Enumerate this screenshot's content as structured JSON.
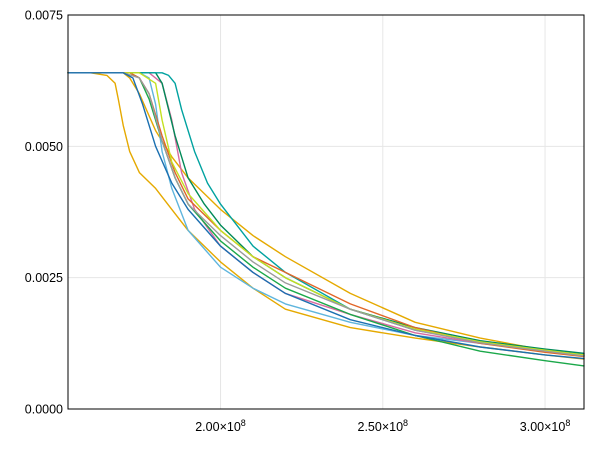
{
  "chart_data": {
    "type": "line",
    "title": "",
    "xlabel": "",
    "ylabel": "",
    "xlim": [
      153000000,
      312000000
    ],
    "ylim": [
      0,
      0.0075
    ],
    "grid": true,
    "legend": "none",
    "x_ticks": [
      {
        "value": 200000000,
        "mantissa": "2.00×10",
        "exp": "8"
      },
      {
        "value": 250000000,
        "mantissa": "2.50×10",
        "exp": "8"
      },
      {
        "value": 300000000,
        "mantissa": "3.00×10",
        "exp": "8"
      }
    ],
    "y_ticks": [
      {
        "value": 0,
        "label": "0.0000"
      },
      {
        "value": 0.0025,
        "label": "0.0025"
      },
      {
        "value": 0.005,
        "label": "0.0050"
      },
      {
        "value": 0.0075,
        "label": "0.0075"
      }
    ],
    "series": [
      {
        "color": "#e5a900",
        "x": [
          153000000,
          160000000,
          165000000,
          167500000,
          168500000,
          170000000,
          172000000,
          175000000,
          180000000,
          185000000,
          190000000,
          200000000,
          210000000,
          220000000,
          240000000,
          260000000,
          280000000,
          300000000,
          312000000
        ],
        "y": [
          0.0064,
          0.0064,
          0.00635,
          0.0062,
          0.0059,
          0.0054,
          0.0049,
          0.0045,
          0.0042,
          0.0038,
          0.0034,
          0.0028,
          0.0023,
          0.0019,
          0.00155,
          0.00135,
          0.00118,
          0.00103,
          0.00095
        ]
      },
      {
        "color": "#e5a900",
        "x": [
          153000000,
          165000000,
          170000000,
          172000000,
          175000000,
          180000000,
          185000000,
          190000000,
          200000000,
          210000000,
          220000000,
          240000000,
          260000000,
          280000000,
          300000000,
          312000000
        ],
        "y": [
          0.0064,
          0.0064,
          0.0064,
          0.0063,
          0.006,
          0.0053,
          0.0048,
          0.0044,
          0.0038,
          0.0033,
          0.0029,
          0.0022,
          0.00165,
          0.00135,
          0.00112,
          0.00102
        ]
      },
      {
        "color": "#5fb5dd",
        "x": [
          153000000,
          170000000,
          175000000,
          178000000,
          180000000,
          182000000,
          185000000,
          190000000,
          200000000,
          210000000,
          220000000,
          240000000,
          260000000,
          280000000,
          300000000,
          312000000
        ],
        "y": [
          0.0064,
          0.0064,
          0.0064,
          0.0063,
          0.0058,
          0.0049,
          0.0042,
          0.0034,
          0.0027,
          0.0023,
          0.002,
          0.00165,
          0.0014,
          0.00125,
          0.00112,
          0.00105
        ]
      },
      {
        "color": "#d76ba0",
        "x": [
          153000000,
          175000000,
          178000000,
          182000000,
          185000000,
          188000000,
          192000000,
          200000000,
          210000000,
          220000000,
          240000000,
          260000000,
          280000000,
          300000000,
          312000000
        ],
        "y": [
          0.0064,
          0.0064,
          0.0064,
          0.0062,
          0.0055,
          0.0045,
          0.0038,
          0.0031,
          0.0026,
          0.0022,
          0.0018,
          0.00145,
          0.00125,
          0.0011,
          0.00103
        ]
      },
      {
        "color": "#008a58",
        "x": [
          153000000,
          175000000,
          180000000,
          182000000,
          186000000,
          190000000,
          195000000,
          200000000,
          210000000,
          220000000,
          240000000,
          260000000,
          280000000,
          300000000,
          312000000
        ],
        "y": [
          0.0064,
          0.0064,
          0.0064,
          0.0062,
          0.0052,
          0.0044,
          0.0039,
          0.0035,
          0.0029,
          0.0025,
          0.0019,
          0.00155,
          0.0013,
          0.00114,
          0.00106
        ]
      },
      {
        "color": "#00a2a0",
        "x": [
          153000000,
          178000000,
          182000000,
          184000000,
          186000000,
          188000000,
          192000000,
          196000000,
          200000000,
          210000000,
          220000000,
          240000000,
          260000000,
          280000000,
          300000000,
          312000000
        ],
        "y": [
          0.0064,
          0.0064,
          0.0064,
          0.00635,
          0.0062,
          0.0057,
          0.0049,
          0.0043,
          0.0039,
          0.0031,
          0.0026,
          0.0019,
          0.0015,
          0.00128,
          0.00112,
          0.00103
        ]
      },
      {
        "color": "#1ba84a",
        "x": [
          153000000,
          172000000,
          175000000,
          178000000,
          182000000,
          186000000,
          190000000,
          200000000,
          210000000,
          220000000,
          240000000,
          260000000,
          280000000,
          300000000,
          312000000
        ],
        "y": [
          0.0064,
          0.0064,
          0.0063,
          0.0059,
          0.0051,
          0.0044,
          0.0039,
          0.0032,
          0.0027,
          0.0023,
          0.0018,
          0.0014,
          0.0011,
          0.00092,
          0.00082
        ]
      },
      {
        "color": "#e16628",
        "x": [
          153000000,
          172000000,
          175000000,
          178000000,
          182000000,
          186000000,
          190000000,
          200000000,
          210000000,
          220000000,
          240000000,
          260000000,
          280000000,
          300000000,
          312000000
        ],
        "y": [
          0.0064,
          0.0064,
          0.0063,
          0.006,
          0.0052,
          0.0045,
          0.004,
          0.0034,
          0.0029,
          0.0026,
          0.002,
          0.00155,
          0.00125,
          0.00108,
          0.001
        ]
      },
      {
        "color": "#c4e020",
        "x": [
          153000000,
          170000000,
          175000000,
          180000000,
          182000000,
          185000000,
          190000000,
          200000000,
          210000000,
          220000000,
          240000000,
          260000000,
          280000000,
          300000000,
          312000000
        ],
        "y": [
          0.0064,
          0.0064,
          0.0064,
          0.0062,
          0.0055,
          0.0047,
          0.0041,
          0.0034,
          0.0029,
          0.0025,
          0.0019,
          0.00152,
          0.00128,
          0.00112,
          0.00103
        ]
      },
      {
        "color": "#9b9b9b",
        "x": [
          153000000,
          170000000,
          175000000,
          178000000,
          182000000,
          186000000,
          190000000,
          200000000,
          210000000,
          220000000,
          240000000,
          260000000,
          280000000,
          300000000,
          312000000
        ],
        "y": [
          0.0064,
          0.0064,
          0.0063,
          0.006,
          0.0051,
          0.0044,
          0.0039,
          0.0033,
          0.0028,
          0.0024,
          0.0019,
          0.0015,
          0.00126,
          0.0011,
          0.00101
        ]
      },
      {
        "color": "#1a6fb0",
        "x": [
          153000000,
          170000000,
          173000000,
          176000000,
          180000000,
          185000000,
          190000000,
          200000000,
          210000000,
          220000000,
          240000000,
          260000000,
          280000000,
          300000000,
          312000000
        ],
        "y": [
          0.0064,
          0.0064,
          0.0063,
          0.0058,
          0.005,
          0.0043,
          0.0038,
          0.0031,
          0.0026,
          0.0022,
          0.0017,
          0.0014,
          0.00118,
          0.00103,
          0.00096
        ]
      }
    ]
  }
}
